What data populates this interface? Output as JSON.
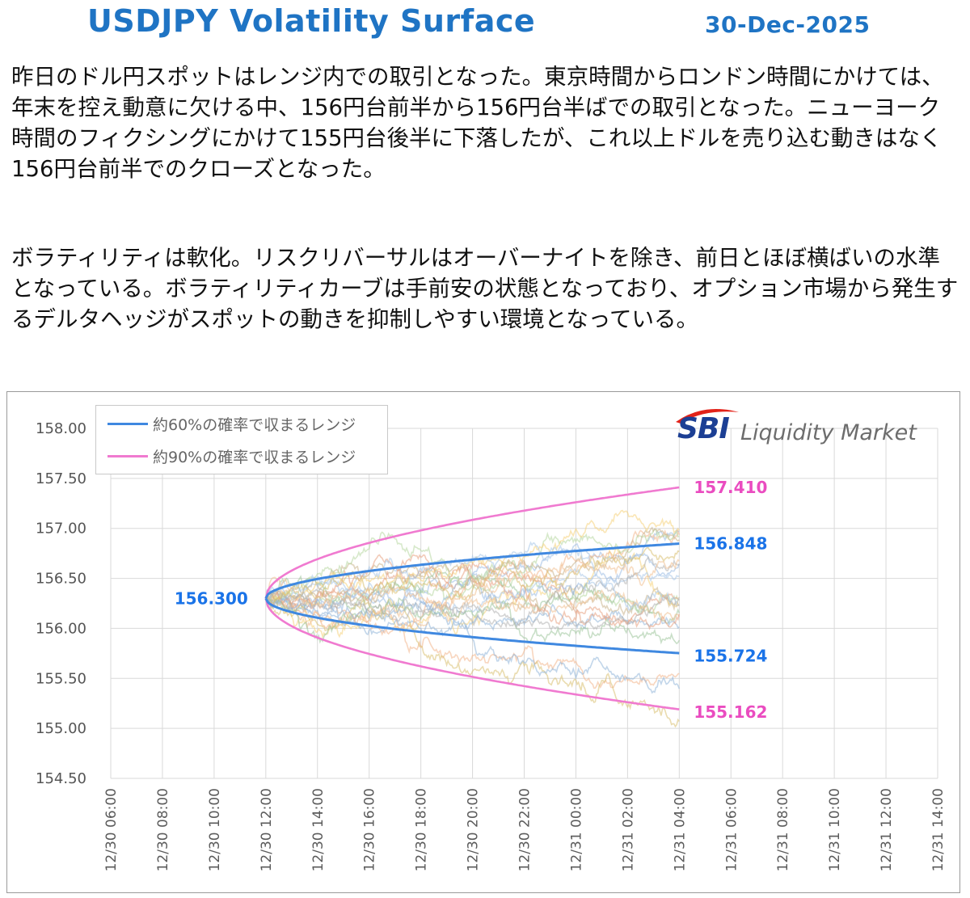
{
  "header": {
    "title": "USDJPY Volatility Surface",
    "date": "30-Dec-2025"
  },
  "commentary": {
    "paragraph1": "昨日のドル円スポットはレンジ内での取引となった。東京時間からロンドン時間にかけては、年末を控え動意に欠ける中、156円台前半から156円台半ばでの取引となった。ニューヨーク時間のフィクシングにかけて155円台後半に下落したが、これ以上ドルを売り込む動きはなく156円台前半でのクローズとなった。",
    "paragraph2": "ボラティリティは軟化。リスクリバーサルはオーバーナイトを除き、前日とほぼ横ばいの水準となっている。ボラティリティカーブは手前安の状態となっており、オプション市場から発生するデルタヘッジがスポットの動きを抑制しやすい環境となっている。"
  },
  "logo": {
    "brand": "SBI",
    "text": "Liquidity Market"
  },
  "colors": {
    "title": "#1f74c4",
    "range60": "#3f88e0",
    "range90": "#f07ad0",
    "label60": "#1a73e8",
    "label90": "#ea4cc0"
  },
  "chart_data": {
    "type": "line",
    "title": "USDJPY Volatility Surface",
    "ylim": [
      154.5,
      158.0
    ],
    "y_ticks": [
      "158.00",
      "157.50",
      "157.00",
      "156.50",
      "156.00",
      "155.50",
      "155.00",
      "154.50"
    ],
    "x_ticks": [
      "12/30 06:00",
      "12/30 08:00",
      "12/30 10:00",
      "12/30 12:00",
      "12/30 14:00",
      "12/30 16:00",
      "12/30 18:00",
      "12/30 20:00",
      "12/30 22:00",
      "12/31 00:00",
      "12/31 02:00",
      "12/31 04:00",
      "12/31 06:00",
      "12/31 08:00",
      "12/31 10:00",
      "12/31 12:00",
      "12/31 14:00"
    ],
    "x_start_hours": 4,
    "x_end_hours": 28,
    "spot": 156.3,
    "spot_label": "156.300",
    "grid": true,
    "series": [
      {
        "name": "約60%の確率で収まるレンジ",
        "kind": "range60",
        "upper_end": 156.848,
        "lower_end": 155.724,
        "upper_label": "156.848",
        "lower_label": "155.724"
      },
      {
        "name": "約90%の確率で収まるレンジ",
        "kind": "range90",
        "upper_end": 157.41,
        "lower_end": 155.162,
        "upper_label": "157.410",
        "lower_label": "155.162"
      }
    ],
    "simulated_paths": 24
  }
}
